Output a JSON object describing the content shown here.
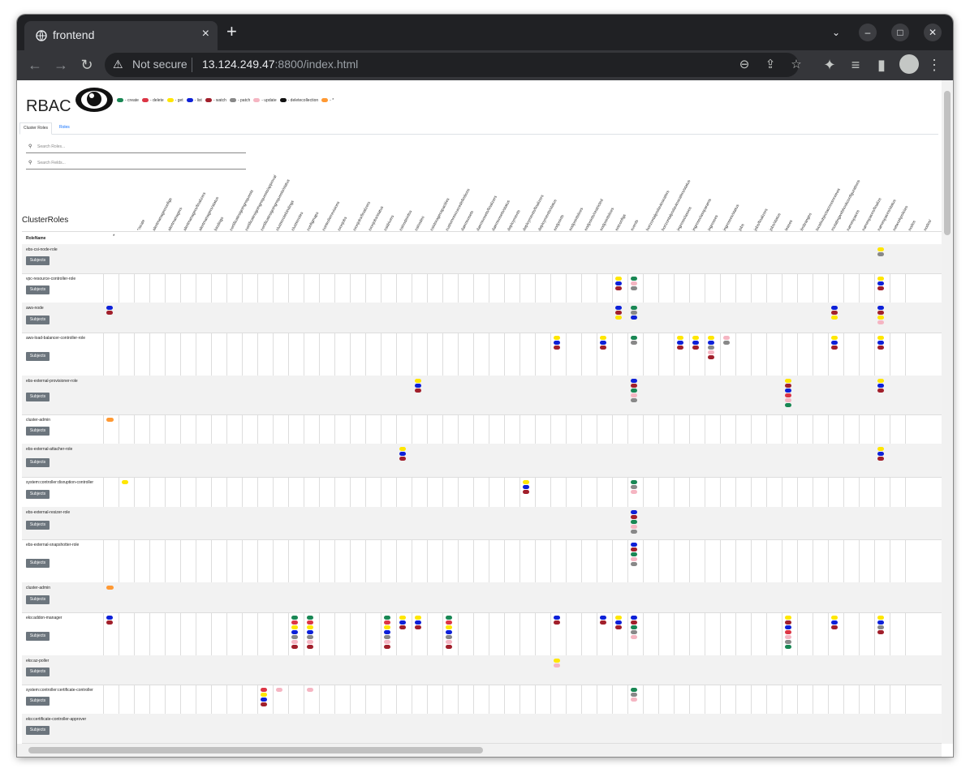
{
  "browser": {
    "tab_title": "frontend",
    "new_tab_label": "+",
    "close_tab_label": "×",
    "not_secure_label": "Not secure",
    "url_host": "13.124.249.47",
    "url_rest": ":8800/index.html",
    "window_controls": [
      "–",
      "□",
      "✕"
    ]
  },
  "page": {
    "title": "RBAC",
    "legend": [
      {
        "verb": "create",
        "label": "- create",
        "color": "#198754"
      },
      {
        "verb": "delete",
        "label": "- delete",
        "color": "#dc3545"
      },
      {
        "verb": "get",
        "label": "- get",
        "color": "#ffe600"
      },
      {
        "verb": "list",
        "label": "- list",
        "color": "#0d20d8"
      },
      {
        "verb": "watch",
        "label": "- watch",
        "color": "#a11f2b"
      },
      {
        "verb": "patch",
        "label": "- patch",
        "color": "#888888"
      },
      {
        "verb": "update",
        "label": "- update",
        "color": "#f5b5c2"
      },
      {
        "verb": "deletecollection",
        "label": "- deletecollection",
        "color": "#111111"
      },
      {
        "verb": "all",
        "label": "- *",
        "color": "#ff9933"
      }
    ],
    "tabs": [
      "Cluster Roles",
      "Roles"
    ],
    "search_roles_placeholder": "Search Roles...",
    "search_fields_placeholder": "Search Fields...",
    "section_title": "ClusterRoles",
    "column_header_name": "RoleName",
    "column_header_star": "*",
    "subjects_button": "Subjects",
    "resource_columns": [
      "*/scale",
      "alertmanagerconfigs",
      "alertmanagers",
      "alertmanagers/finalizers",
      "alertmanagers/status",
      "bindings",
      "certificatesigningrequests",
      "certificatesigningrequests/approval",
      "certificatesigningrequests/status",
      "clusterrolebindings",
      "clusterroles",
      "configmaps",
      "controllerrevisions",
      "cronjobs",
      "cronjobs/finalizers",
      "cronjobs/status",
      "csidrivers",
      "csinodeinfos",
      "csinodes",
      "csistoragecapacities",
      "customresourcedefinitions",
      "daemonsets",
      "daemonsets/finalizers",
      "daemonsets/status",
      "deployments",
      "deployments/finalizers",
      "deployments/status",
      "endpoints",
      "endpointslices",
      "endpoints/restricted",
      "endpointslices",
      "eniconfigs",
      "events",
      "horizontalpodautoscalers",
      "horizontalpodautoscalers/status",
      "ingressclasses",
      "ingressclassparams",
      "ingresses",
      "ingresses/status",
      "jobs",
      "jobs/finalizers",
      "jobs/status",
      "leases",
      "limitranges",
      "localsubjectaccessreviews",
      "mutatingwebhookconfigurations",
      "namespaces",
      "namespaces/finalize",
      "namespaces/status",
      "networkpolicies",
      "nodes",
      "nodes/"
    ],
    "rows": [
      {
        "name": "ebs-csi-node-role",
        "cells": [
          {
            "c": 50,
            "v": [
              "get",
              "patch"
            ]
          }
        ]
      },
      {
        "name": "vpc-resource-controller-role",
        "cells": [
          {
            "c": 33,
            "v": [
              "get",
              "list",
              "watch"
            ]
          },
          {
            "c": 34,
            "v": [
              "create",
              "update",
              "patch"
            ]
          },
          {
            "c": 50,
            "v": [
              "get",
              "list",
              "watch"
            ]
          }
        ]
      },
      {
        "name": "aws-node",
        "cells": [
          {
            "c": 0,
            "v": [
              "list",
              "watch"
            ]
          },
          {
            "c": 33,
            "v": [
              "list",
              "watch",
              "get"
            ]
          },
          {
            "c": 34,
            "v": [
              "create",
              "patch",
              "list"
            ]
          },
          {
            "c": 47,
            "v": [
              "list",
              "watch",
              "get"
            ]
          },
          {
            "c": 50,
            "v": [
              "list",
              "watch",
              "get",
              "update"
            ]
          }
        ]
      },
      {
        "name": "aws-load-balancer-controller-role",
        "cells": [
          {
            "c": 29,
            "v": [
              "get",
              "list",
              "watch"
            ]
          },
          {
            "c": 32,
            "v": [
              "get",
              "list",
              "watch"
            ]
          },
          {
            "c": 34,
            "v": [
              "create",
              "patch"
            ]
          },
          {
            "c": 37,
            "v": [
              "get",
              "list",
              "watch"
            ]
          },
          {
            "c": 38,
            "v": [
              "get",
              "list",
              "watch"
            ]
          },
          {
            "c": 39,
            "v": [
              "get",
              "list",
              "patch",
              "update",
              "watch"
            ]
          },
          {
            "c": 40,
            "v": [
              "update",
              "patch"
            ]
          },
          {
            "c": 47,
            "v": [
              "get",
              "list",
              "watch"
            ]
          },
          {
            "c": 50,
            "v": [
              "get",
              "list",
              "watch"
            ]
          }
        ]
      },
      {
        "name": "ebs-external-provisioner-role",
        "cells": [
          {
            "c": 20,
            "v": [
              "get",
              "list",
              "watch"
            ]
          },
          {
            "c": 34,
            "v": [
              "list",
              "watch",
              "create",
              "update",
              "patch"
            ]
          },
          {
            "c": 44,
            "v": [
              "get",
              "watch",
              "list",
              "delete",
              "update",
              "create"
            ]
          },
          {
            "c": 50,
            "v": [
              "get",
              "list",
              "watch"
            ]
          }
        ]
      },
      {
        "name": "cluster-admin",
        "cells": [
          {
            "c": 0,
            "v": [
              "all"
            ]
          }
        ]
      },
      {
        "name": "ebs-external-attacher-role",
        "cells": [
          {
            "c": 19,
            "v": [
              "get",
              "list",
              "watch"
            ]
          },
          {
            "c": 50,
            "v": [
              "get",
              "list",
              "watch"
            ]
          }
        ]
      },
      {
        "name": "system:controller:disruption-controller",
        "cells": [
          {
            "c": 1,
            "v": [
              "get"
            ]
          },
          {
            "c": 27,
            "v": [
              "get",
              "list",
              "watch"
            ]
          },
          {
            "c": 34,
            "v": [
              "create",
              "patch",
              "update"
            ]
          }
        ]
      },
      {
        "name": "ebs-external-resizer-role",
        "cells": [
          {
            "c": 34,
            "v": [
              "list",
              "watch",
              "create",
              "update",
              "patch"
            ]
          }
        ]
      },
      {
        "name": "ebs-external-snapshotter-role",
        "cells": [
          {
            "c": 34,
            "v": [
              "list",
              "watch",
              "create",
              "update",
              "patch"
            ]
          }
        ]
      },
      {
        "name": "cluster-admin",
        "cells": [
          {
            "c": 0,
            "v": [
              "all"
            ]
          }
        ]
      },
      {
        "name": "eks:addon-manager",
        "cells": [
          {
            "c": 0,
            "v": [
              "list",
              "watch"
            ]
          },
          {
            "c": 12,
            "v": [
              "create",
              "delete",
              "get",
              "list",
              "patch",
              "update",
              "watch"
            ]
          },
          {
            "c": 13,
            "v": [
              "create",
              "delete",
              "get",
              "list",
              "patch",
              "update",
              "watch"
            ]
          },
          {
            "c": 18,
            "v": [
              "create",
              "delete",
              "get",
              "list",
              "patch",
              "update",
              "watch"
            ]
          },
          {
            "c": 19,
            "v": [
              "get",
              "list",
              "watch"
            ]
          },
          {
            "c": 20,
            "v": [
              "get",
              "list",
              "watch"
            ]
          },
          {
            "c": 22,
            "v": [
              "create",
              "delete",
              "get",
              "list",
              "patch",
              "update",
              "watch"
            ]
          },
          {
            "c": 29,
            "v": [
              "list",
              "watch"
            ]
          },
          {
            "c": 32,
            "v": [
              "list",
              "watch"
            ]
          },
          {
            "c": 33,
            "v": [
              "get",
              "list",
              "watch"
            ]
          },
          {
            "c": 34,
            "v": [
              "list",
              "watch",
              "create",
              "patch",
              "update"
            ]
          },
          {
            "c": 44,
            "v": [
              "get",
              "watch",
              "list",
              "delete",
              "update",
              "patch",
              "create"
            ]
          },
          {
            "c": 47,
            "v": [
              "get",
              "list",
              "watch"
            ]
          },
          {
            "c": 50,
            "v": [
              "get",
              "list",
              "patch",
              "watch"
            ]
          }
        ]
      },
      {
        "name": "eks:az-poller",
        "cells": [
          {
            "c": 29,
            "v": [
              "get",
              "update"
            ]
          }
        ]
      },
      {
        "name": "system:controller:certificate-controller",
        "cells": [
          {
            "c": 10,
            "v": [
              "delete",
              "get",
              "list",
              "watch"
            ]
          },
          {
            "c": 11,
            "v": [
              "update"
            ]
          },
          {
            "c": 13,
            "v": [
              "update"
            ]
          },
          {
            "c": 34,
            "v": [
              "create",
              "patch",
              "update"
            ]
          }
        ]
      },
      {
        "name": "eks:certificate-controller-approver",
        "cells": []
      }
    ]
  }
}
